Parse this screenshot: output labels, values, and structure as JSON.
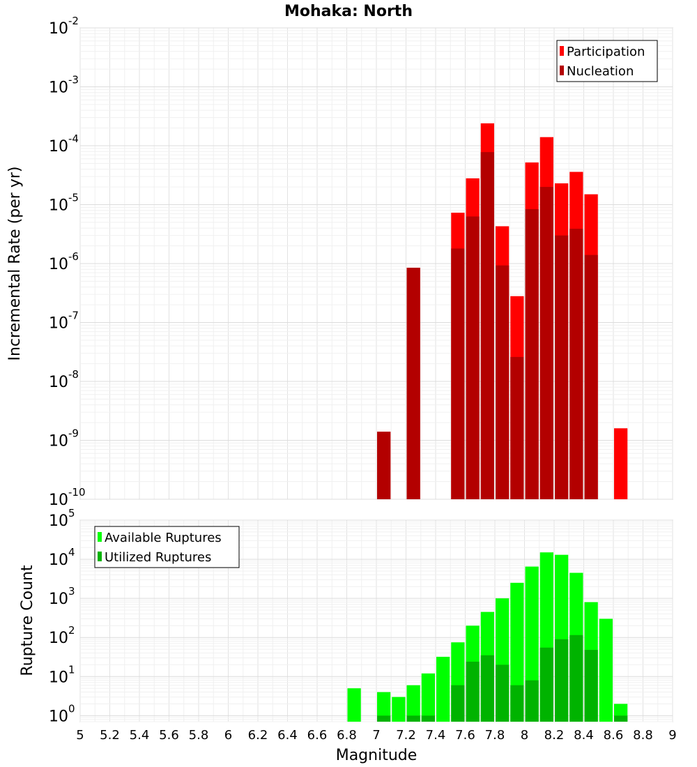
{
  "title": "Mohaka: North",
  "chart_data": [
    {
      "type": "bar",
      "ylabel": "Incremental Rate (per yr)",
      "xlabel": "",
      "yscale": "log",
      "xlim": [
        5,
        9
      ],
      "ylim": [
        1e-10,
        0.01
      ],
      "grid": true,
      "legend_position": "top-right",
      "ytick_labels": [
        {
          "base": "10",
          "exp": "-10"
        },
        {
          "base": "10",
          "exp": "-9"
        },
        {
          "base": "10",
          "exp": "-8"
        },
        {
          "base": "10",
          "exp": "-7"
        },
        {
          "base": "10",
          "exp": "-6"
        },
        {
          "base": "10",
          "exp": "-5"
        },
        {
          "base": "10",
          "exp": "-4"
        },
        {
          "base": "10",
          "exp": "-3"
        },
        {
          "base": "10",
          "exp": "-2"
        }
      ],
      "series": [
        {
          "name": "Participation",
          "color": "#ff0000",
          "x": [
            7.05,
            7.25,
            7.55,
            7.65,
            7.75,
            7.85,
            7.95,
            8.05,
            8.15,
            8.25,
            8.35,
            8.45,
            8.65
          ],
          "values": [
            1.4e-09,
            8.5e-07,
            7.3e-06,
            2.8e-05,
            0.00024,
            4.3e-06,
            2.8e-07,
            5.2e-05,
            0.00014,
            2.3e-05,
            3.6e-05,
            1.5e-05,
            1.6e-09
          ]
        },
        {
          "name": "Nucleation",
          "color": "#b30000",
          "x": [
            7.05,
            7.25,
            7.55,
            7.65,
            7.75,
            7.85,
            7.95,
            8.05,
            8.15,
            8.25,
            8.35,
            8.45
          ],
          "values": [
            1.4e-09,
            8.5e-07,
            1.8e-06,
            6.3e-06,
            7.8e-05,
            9.3e-07,
            2.6e-08,
            8.4e-06,
            2e-05,
            3e-06,
            3.9e-06,
            1.4e-06
          ]
        }
      ]
    },
    {
      "type": "bar",
      "ylabel": "Rupture Count",
      "xlabel": "Magnitude",
      "yscale": "log",
      "xlim": [
        5,
        9
      ],
      "ylim": [
        0.7,
        100000
      ],
      "grid": true,
      "legend_position": "top-left",
      "xtick_labels": [
        "5",
        "5.2",
        "5.4",
        "5.6",
        "5.8",
        "6",
        "6.2",
        "6.4",
        "6.6",
        "6.8",
        "7",
        "7.2",
        "7.4",
        "7.6",
        "7.8",
        "8",
        "8.2",
        "8.4",
        "8.6",
        "8.8",
        "9"
      ],
      "ytick_labels": [
        {
          "base": "10",
          "exp": "0"
        },
        {
          "base": "10",
          "exp": "1"
        },
        {
          "base": "10",
          "exp": "2"
        },
        {
          "base": "10",
          "exp": "3"
        },
        {
          "base": "10",
          "exp": "4"
        },
        {
          "base": "10",
          "exp": "5"
        }
      ],
      "series": [
        {
          "name": "Available Ruptures",
          "color": "#00ff00",
          "x": [
            6.85,
            7.05,
            7.15,
            7.25,
            7.35,
            7.45,
            7.55,
            7.65,
            7.75,
            7.85,
            7.95,
            8.05,
            8.15,
            8.25,
            8.35,
            8.45,
            8.55,
            8.65
          ],
          "values": [
            5,
            4,
            3,
            6,
            12,
            32,
            75,
            200,
            450,
            1000,
            2500,
            6500,
            15000,
            13000,
            4500,
            800,
            300,
            2
          ]
        },
        {
          "name": "Utilized Ruptures",
          "color": "#00b300",
          "x": [
            7.05,
            7.25,
            7.35,
            7.55,
            7.65,
            7.75,
            7.85,
            7.95,
            8.05,
            8.15,
            8.25,
            8.35,
            8.45,
            8.65
          ],
          "values": [
            1,
            1,
            1,
            6,
            24,
            35,
            20,
            6,
            8,
            55,
            90,
            115,
            48,
            1
          ]
        }
      ]
    }
  ]
}
